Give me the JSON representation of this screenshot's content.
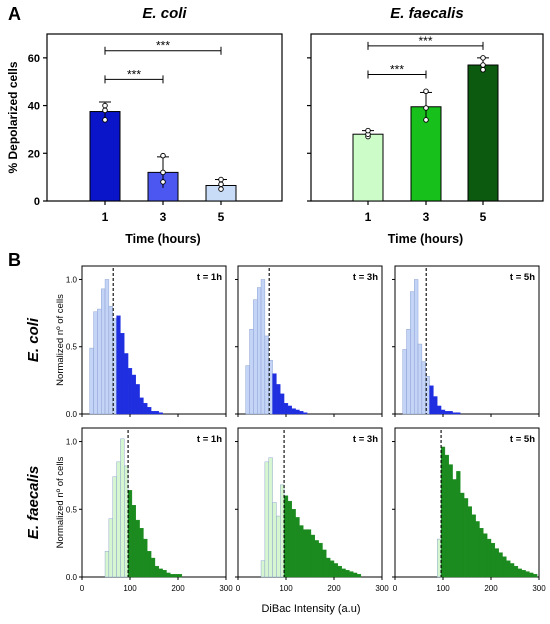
{
  "panel_letters": {
    "a": "A",
    "b": "B"
  },
  "chart_data": [
    {
      "type": "bar",
      "panel": "A",
      "title": "E. coli",
      "ylabel": "% Depolarized cells",
      "xlabel": "Time (hours)",
      "categories": [
        "1",
        "3",
        "5"
      ],
      "values": [
        37.5,
        12,
        6.5
      ],
      "errors": [
        4,
        6.5,
        2.5
      ],
      "points": [
        [
          34,
          38,
          40
        ],
        [
          8,
          12,
          19
        ],
        [
          5,
          7,
          9
        ]
      ],
      "bar_colors": [
        "#0a14c8",
        "#4b57f0",
        "#c8dcf8"
      ],
      "ylim": [
        0,
        70
      ],
      "yticks": [
        0,
        20,
        40,
        60
      ],
      "significance": [
        {
          "from": "1",
          "to": "3",
          "y": 51,
          "label": "***"
        },
        {
          "from": "1",
          "to": "5",
          "y": 63,
          "label": "***"
        }
      ]
    },
    {
      "type": "bar",
      "panel": "A",
      "title": "E. faecalis",
      "xlabel": "Time (hours)",
      "categories": [
        "1",
        "3",
        "5"
      ],
      "values": [
        28,
        39.5,
        57
      ],
      "errors": [
        1.5,
        6,
        3
      ],
      "points": [
        [
          27,
          28,
          29.5
        ],
        [
          34,
          39,
          46
        ],
        [
          55,
          57,
          60
        ]
      ],
      "bar_colors": [
        "#ccfcc8",
        "#17c01a",
        "#0b5a10"
      ],
      "ylim": [
        0,
        70
      ],
      "yticks": [
        0,
        20,
        40,
        60
      ],
      "significance": [
        {
          "from": "1",
          "to": "3",
          "y": 53,
          "label": "***"
        },
        {
          "from": "1",
          "to": "5",
          "y": 65,
          "label": "***"
        }
      ]
    },
    {
      "type": "histogram",
      "panel": "B",
      "row_label": "E. coli",
      "ylabel": "Normalized nº of cells",
      "xlabel": "DiBac Intensity (a.u)",
      "xlim": [
        0,
        300
      ],
      "ylim": [
        0,
        1.1
      ],
      "yticks": [
        "0.0",
        "0.5",
        "1.0"
      ],
      "xticks": [
        0,
        100,
        200,
        300
      ],
      "bin_width": 8,
      "light_color": "#c4d4f6",
      "dark_color": "#1f2fe0",
      "subplots": [
        {
          "label": "t = 1h",
          "threshold": 65,
          "bin_start": 16,
          "heights": [
            0.49,
            0.76,
            0.78,
            0.93,
            1.0,
            0.8,
            0.71,
            0.73,
            0.6,
            0.45,
            0.34,
            0.29,
            0.22,
            0.12,
            0.08,
            0.05,
            0.02,
            0.02,
            0.01
          ]
        },
        {
          "label": "t = 3h",
          "threshold": 65,
          "bin_start": 16,
          "heights": [
            0.36,
            0.63,
            0.85,
            0.94,
            1.0,
            0.58,
            0.4,
            0.3,
            0.22,
            0.15,
            0.08,
            0.06,
            0.04,
            0.03,
            0.02,
            0.01
          ]
        },
        {
          "label": "t = 5h",
          "threshold": 65,
          "bin_start": 16,
          "heights": [
            0.48,
            0.63,
            0.91,
            1.0,
            0.52,
            0.39,
            0.28,
            0.21,
            0.13,
            0.06,
            0.03,
            0.02,
            0.02,
            0.01,
            0.01
          ]
        }
      ]
    },
    {
      "type": "histogram",
      "panel": "B",
      "row_label": "E. faecalis",
      "ylabel": "Normalized nº of cells",
      "xlabel": "DiBac Intensity (a.u)",
      "xlim": [
        0,
        300
      ],
      "ylim": [
        0,
        1.1
      ],
      "yticks": [
        "0.0",
        "0.5",
        "1.0"
      ],
      "xticks": [
        0,
        100,
        200,
        300
      ],
      "bin_width": 8,
      "light_color": "#d6f6d2",
      "dark_color": "#1b8a1f",
      "subplots": [
        {
          "label": "t = 1h",
          "threshold": 96,
          "bin_start": 48,
          "heights": [
            0.19,
            0.43,
            0.74,
            0.85,
            1.02,
            0.82,
            0.64,
            0.53,
            0.42,
            0.36,
            0.28,
            0.19,
            0.14,
            0.08,
            0.06,
            0.05,
            0.03,
            0.02,
            0.02,
            0.02
          ]
        },
        {
          "label": "t = 3h",
          "threshold": 96,
          "bin_start": 48,
          "heights": [
            0.12,
            0.85,
            0.88,
            0.55,
            0.45,
            0.68,
            0.6,
            0.56,
            0.5,
            0.44,
            0.38,
            0.35,
            0.35,
            0.31,
            0.27,
            0.25,
            0.2,
            0.14,
            0.12,
            0.1,
            0.08,
            0.06,
            0.05,
            0.04,
            0.03,
            0.02
          ]
        },
        {
          "label": "t = 5h",
          "threshold": 96,
          "bin_start": 88,
          "heights": [
            0.28,
            0.96,
            0.9,
            0.83,
            0.72,
            0.78,
            0.62,
            0.58,
            0.52,
            0.46,
            0.41,
            0.36,
            0.32,
            0.28,
            0.25,
            0.21,
            0.18,
            0.15,
            0.12,
            0.1,
            0.08,
            0.06,
            0.05,
            0.04,
            0.03,
            0.02
          ]
        }
      ]
    }
  ]
}
